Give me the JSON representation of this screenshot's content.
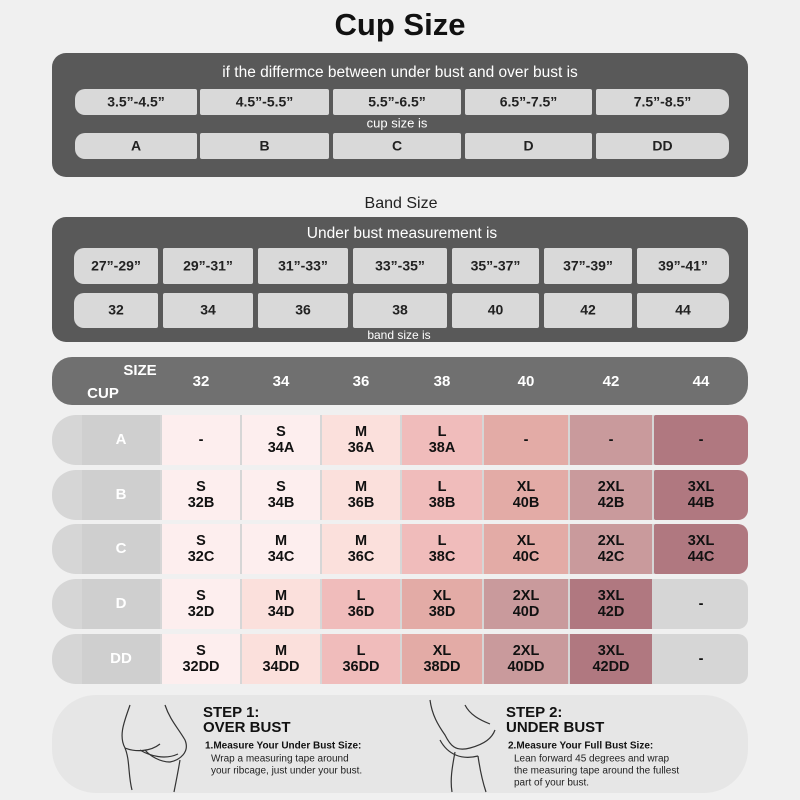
{
  "title": "Cup Size",
  "cup_panel": {
    "heading": "if the differmce between under bust and over bust is",
    "ranges": [
      "3.5”-4.5”",
      "4.5”-5.5”",
      "5.5”-6.5”",
      "6.5”-7.5”",
      "7.5”-8.5”"
    ],
    "caption": "cup size is",
    "cups": [
      "A",
      "B",
      "C",
      "D",
      "DD"
    ]
  },
  "band_title": "Band Size",
  "band_panel": {
    "heading": "Under bust measurement is",
    "ranges": [
      "27”-29”",
      "29”-31”",
      "31”-33”",
      "33”-35”",
      "35”-37”",
      "37”-39”",
      "39”-41”"
    ],
    "bands": [
      "32",
      "34",
      "36",
      "38",
      "40",
      "42",
      "44"
    ],
    "caption": "band size is"
  },
  "size_table": {
    "corner_top": "SIZE",
    "corner_bottom": "CUP",
    "columns": [
      "32",
      "34",
      "36",
      "38",
      "40",
      "42",
      "44"
    ],
    "rows": [
      {
        "cup": "A",
        "cells": [
          [
            "-"
          ],
          [
            "S",
            "34A"
          ],
          [
            "M",
            "36A"
          ],
          [
            "L",
            "38A"
          ],
          [
            "-"
          ],
          [
            "-"
          ],
          [
            "-"
          ]
        ],
        "colors": [
          "#fdeeee",
          "#fdeeee",
          "#fbe0dc",
          "#f0bcbb",
          "#e3aba6",
          "#c99a9c",
          "#b07880"
        ]
      },
      {
        "cup": "B",
        "cells": [
          [
            "S",
            "32B"
          ],
          [
            "S",
            "34B"
          ],
          [
            "M",
            "36B"
          ],
          [
            "L",
            "38B"
          ],
          [
            "XL",
            "40B"
          ],
          [
            "2XL",
            "42B"
          ],
          [
            "3XL",
            "44B"
          ]
        ],
        "colors": [
          "#fdeeee",
          "#fdeeee",
          "#fbe0dc",
          "#f0bcbb",
          "#e3aba6",
          "#c99a9c",
          "#b07880"
        ]
      },
      {
        "cup": "C",
        "cells": [
          [
            "S",
            "32C"
          ],
          [
            "M",
            "34C"
          ],
          [
            "M",
            "36C"
          ],
          [
            "L",
            "38C"
          ],
          [
            "XL",
            "40C"
          ],
          [
            "2XL",
            "42C"
          ],
          [
            "3XL",
            "44C"
          ]
        ],
        "colors": [
          "#fdeeee",
          "#fdeeee",
          "#fbe0dc",
          "#f0bcbb",
          "#e3aba6",
          "#c99a9c",
          "#b07880"
        ]
      },
      {
        "cup": "D",
        "cells": [
          [
            "S",
            "32D"
          ],
          [
            "M",
            "34D"
          ],
          [
            "L",
            "36D"
          ],
          [
            "XL",
            "38D"
          ],
          [
            "2XL",
            "40D"
          ],
          [
            "3XL",
            "42D"
          ],
          [
            "-"
          ]
        ],
        "colors": [
          "#fdeeee",
          "#fbe0dc",
          "#f0bcbb",
          "#e3aba6",
          "#c99a9c",
          "#b07880",
          "#d6d6d6"
        ]
      },
      {
        "cup": "DD",
        "cells": [
          [
            "S",
            "32DD"
          ],
          [
            "M",
            "34DD"
          ],
          [
            "L",
            "36DD"
          ],
          [
            "XL",
            "38DD"
          ],
          [
            "2XL",
            "40DD"
          ],
          [
            "3XL",
            "42DD"
          ],
          [
            "-"
          ]
        ],
        "colors": [
          "#fdeeee",
          "#fbe0dc",
          "#f0bcbb",
          "#e3aba6",
          "#c99a9c",
          "#b07880",
          "#d6d6d6"
        ]
      }
    ]
  },
  "steps": [
    {
      "label": "STEP 1:",
      "title": "OVER BUST",
      "instruction": "1.Measure Your Under Bust Size:",
      "lines": [
        "Wrap a measuring tape around",
        "your ribcage, just under your bust."
      ]
    },
    {
      "label": "STEP 2:",
      "title": "UNDER BUST",
      "instruction": "2.Measure Your Full Bust Size:",
      "lines": [
        "Lean forward 45 degrees and wrap",
        "the measuring tape around the fullest",
        "part of your bust."
      ]
    }
  ]
}
